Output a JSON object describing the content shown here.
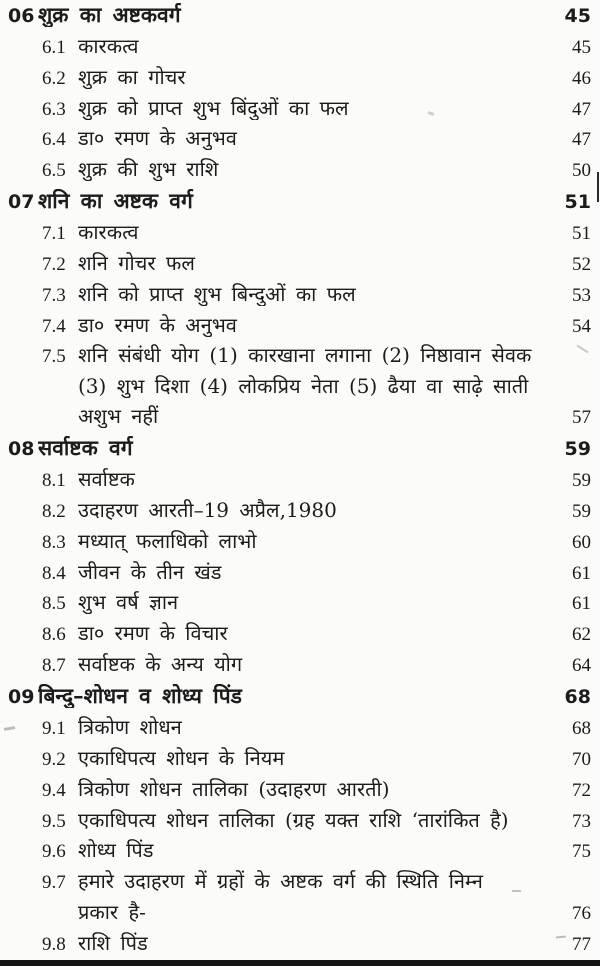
{
  "colors": {
    "paper": "#fbfbf9",
    "ink": "#1c1c1c"
  },
  "toc": {
    "entries": [
      {
        "kind": "chapter",
        "num": "06",
        "lines": [
          "शुक्र का अष्टकवर्ग"
        ],
        "page": "45"
      },
      {
        "kind": "section",
        "num": "6.1",
        "lines": [
          "कारकत्व"
        ],
        "page": "45"
      },
      {
        "kind": "section",
        "num": "6.2",
        "lines": [
          "शुक्र का गोचर"
        ],
        "page": "46"
      },
      {
        "kind": "section",
        "num": "6.3",
        "lines": [
          "शुक्र को प्राप्त शुभ बिंदुओं का फल"
        ],
        "page": "47"
      },
      {
        "kind": "section",
        "num": "6.4",
        "lines": [
          "डा० रमण के अनुभव"
        ],
        "page": "47"
      },
      {
        "kind": "section",
        "num": "6.5",
        "lines": [
          "शुक्र की शुभ राशि"
        ],
        "page": "50"
      },
      {
        "kind": "chapter",
        "num": "07",
        "lines": [
          "शनि का अष्टक वर्ग"
        ],
        "page": "51"
      },
      {
        "kind": "section",
        "num": "7.1",
        "lines": [
          "कारकत्व"
        ],
        "page": "51"
      },
      {
        "kind": "section",
        "num": "7.2",
        "lines": [
          "शनि गोचर फल"
        ],
        "page": "52"
      },
      {
        "kind": "section",
        "num": "7.3",
        "lines": [
          "शनि को प्राप्त शुभ बिन्दुओं का फल"
        ],
        "page": "53"
      },
      {
        "kind": "section",
        "num": "7.4",
        "lines": [
          "डा० रमण के अनुभव"
        ],
        "page": "54"
      },
      {
        "kind": "section",
        "num": "7.5",
        "lines": [
          "शनि संबंधी योग (1) कारखाना लगाना (2) निष्ठावान सेवक",
          "(3) शुभ दिशा (4) लोकप्रिय नेता (5) ढैया वा साढ़े साती",
          "अशुभ नहीं"
        ],
        "page": "57"
      },
      {
        "kind": "chapter",
        "num": "08",
        "lines": [
          "सर्वाष्टक वर्ग"
        ],
        "page": "59"
      },
      {
        "kind": "section",
        "num": "8.1",
        "lines": [
          "सर्वाष्टक"
        ],
        "page": "59"
      },
      {
        "kind": "section",
        "num": "8.2",
        "lines": [
          "उदाहरण आरती–19 अप्रैल,1980"
        ],
        "page": "59"
      },
      {
        "kind": "section",
        "num": "8.3",
        "lines": [
          "मध्यात् फलाधिको लाभो"
        ],
        "page": "60"
      },
      {
        "kind": "section",
        "num": "8.4",
        "lines": [
          "जीवन के तीन खंड"
        ],
        "page": "61"
      },
      {
        "kind": "section",
        "num": "8.5",
        "lines": [
          "शुभ वर्ष ज्ञान"
        ],
        "page": "61"
      },
      {
        "kind": "section",
        "num": "8.6",
        "lines": [
          "डा० रमण के विचार"
        ],
        "page": "62"
      },
      {
        "kind": "section",
        "num": "8.7",
        "lines": [
          "सर्वाष्टक के अन्य योग"
        ],
        "page": "64"
      },
      {
        "kind": "chapter",
        "num": "09",
        "lines": [
          "बिन्दु–शोधन व शोध्य पिंड"
        ],
        "page": "68"
      },
      {
        "kind": "section",
        "num": "9.1",
        "lines": [
          "त्रिकोण शोधन"
        ],
        "page": "68"
      },
      {
        "kind": "section",
        "num": "9.2",
        "lines": [
          "एकाधिपत्य शोधन के नियम"
        ],
        "page": "70"
      },
      {
        "kind": "section",
        "num": "9.4",
        "lines": [
          "त्रिकोण शोधन तालिका (उदाहरण आरती)"
        ],
        "page": "72"
      },
      {
        "kind": "section",
        "num": "9.5",
        "lines": [
          "एकाधिपत्य शोधन तालिका (ग्रह यक्त राशि ‘तारांकित है)"
        ],
        "page": "73"
      },
      {
        "kind": "section",
        "num": "9.6",
        "lines": [
          "शोध्य पिंड"
        ],
        "page": "75"
      },
      {
        "kind": "section",
        "num": "9.7",
        "lines": [
          "हमारे उदाहरण में ग्रहों के अष्टक वर्ग की स्थिति निम्न",
          "प्रकार है-"
        ],
        "page": "76"
      },
      {
        "kind": "section",
        "num": "9.8",
        "lines": [
          "राशि पिंड"
        ],
        "page": "77"
      }
    ]
  }
}
